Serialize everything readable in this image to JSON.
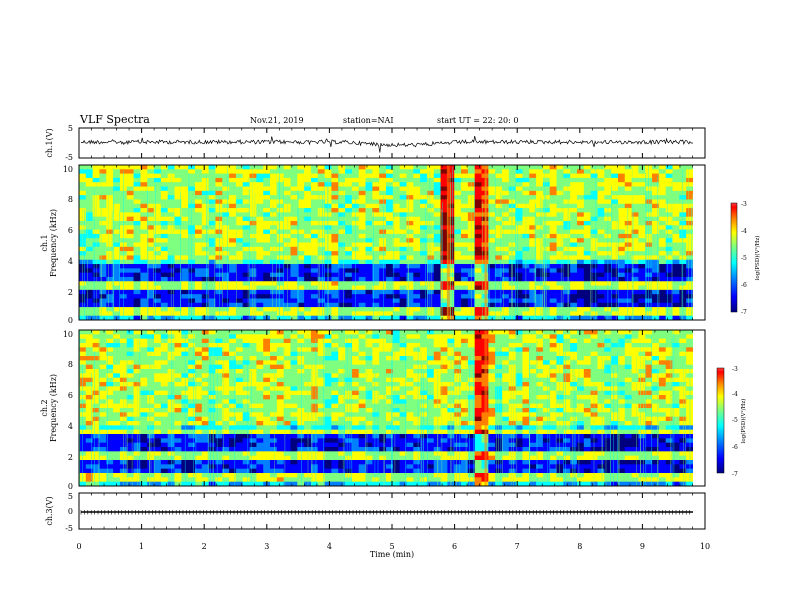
{
  "header": {
    "title": "VLF Spectra",
    "date": "Nov.21, 2019",
    "station": "station=NAI",
    "start": "start  UT =   22: 20: 0"
  },
  "colors": {
    "background": "#ffffff",
    "axes": "#000000",
    "colormap": [
      "#00007f",
      "#0000ff",
      "#007fff",
      "#00ffff",
      "#7fff7f",
      "#ffff00",
      "#ff7f00",
      "#ff0000",
      "#7f0000"
    ]
  },
  "chart_data": [
    {
      "type": "line",
      "ylabel": "ch.1(V)",
      "xlim": [
        0,
        10
      ],
      "ylim": [
        -5,
        5
      ],
      "yticks": [
        "5",
        "-5"
      ],
      "note": "waveform baseline ≈ 0 V with small fluctuations"
    },
    {
      "type": "heatmap",
      "ylabel_line1": "ch.1",
      "ylabel_line2": "Frequency (kHz)",
      "xlim": [
        0,
        10
      ],
      "ylim": [
        0,
        10
      ],
      "yticks": [
        "0",
        "2",
        "4",
        "6",
        "8",
        "10"
      ],
      "colorbar": {
        "label": "log(PSD)(V²/Hz)",
        "range": [
          -7,
          -3
        ],
        "ticks": [
          "-3",
          "-4",
          "-5",
          "-6",
          "-7"
        ]
      },
      "features": [
        {
          "kind": "broadband bursts",
          "time_min": 6.5,
          "freq_khz": [
            0.2,
            10
          ]
        },
        {
          "kind": "broadband bursts",
          "time_min": 5.9,
          "freq_khz": [
            1.0,
            10
          ]
        },
        {
          "kind": "narrowband line",
          "freq_khz": 2.2
        },
        {
          "kind": "narrowband line",
          "freq_khz": 0.5
        }
      ]
    },
    {
      "type": "heatmap",
      "ylabel_line1": "ch.2",
      "ylabel_line2": "Frequency (kHz)",
      "xlim": [
        0,
        10
      ],
      "ylim": [
        0,
        10
      ],
      "yticks": [
        "0",
        "2",
        "4",
        "6",
        "8",
        "10"
      ],
      "colorbar": {
        "label": "log(PSD)(V²/Hz)",
        "range": [
          -7,
          -3
        ],
        "ticks": [
          "-3",
          "-4",
          "-5",
          "-6",
          "-7"
        ]
      },
      "features": [
        {
          "kind": "broadband bursts",
          "time_min": 6.5,
          "freq_khz": [
            0.2,
            10
          ]
        },
        {
          "kind": "narrowband line",
          "freq_khz": 3.4
        },
        {
          "kind": "narrowband line",
          "freq_khz": 2.0
        },
        {
          "kind": "narrowband line",
          "freq_khz": 0.6
        }
      ]
    },
    {
      "type": "line",
      "ylabel": "ch.3(V)",
      "xlim": [
        0,
        10
      ],
      "ylim": [
        -5,
        5
      ],
      "yticks": [
        "5",
        "0",
        "-5"
      ],
      "note": "flat trace ≈ 0 V with regular tick marks"
    }
  ],
  "xaxis": {
    "label": "Time (min)",
    "ticks": [
      "0",
      "1",
      "2",
      "3",
      "4",
      "5",
      "6",
      "7",
      "8",
      "9",
      "10"
    ]
  }
}
